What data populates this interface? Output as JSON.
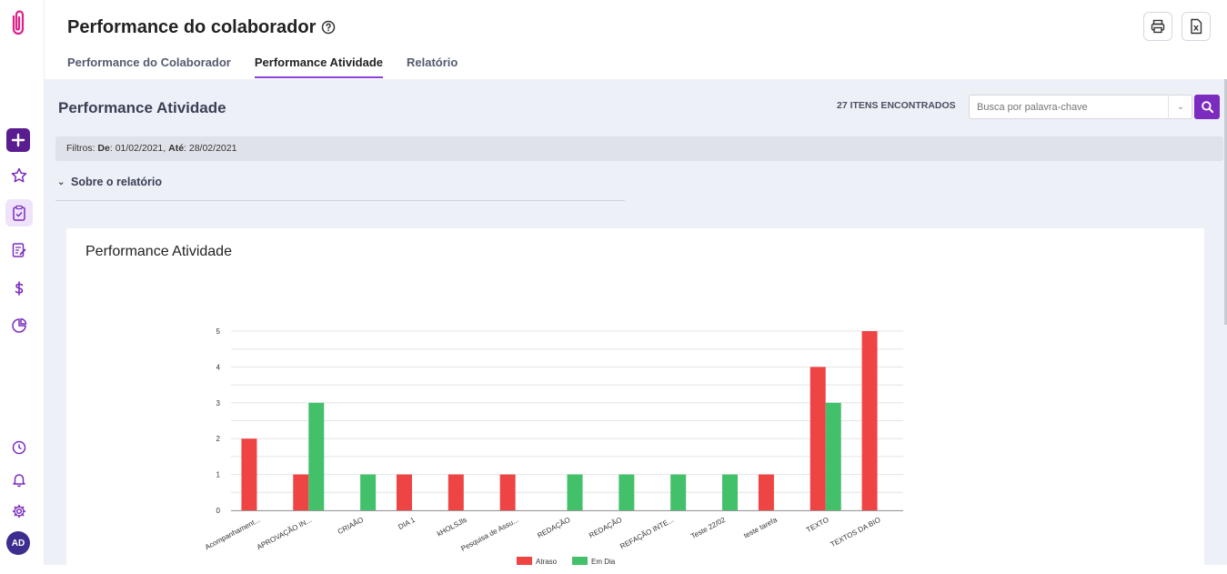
{
  "header": {
    "title": "Performance do colaborador",
    "tabs": [
      {
        "label": "Performance do Colaborador",
        "active": false
      },
      {
        "label": "Performance Atividade",
        "active": true
      },
      {
        "label": "Relatório",
        "active": false
      }
    ]
  },
  "section": {
    "title": "Performance Atividade",
    "items_found": "27 ITENS ENCONTRADOS",
    "search_placeholder": "Busca por palavra-chave"
  },
  "filters": {
    "prefix": "Filtros:",
    "from_label": "De",
    "from_value": "01/02/2021",
    "to_label": "Até",
    "to_value": "28/02/2021"
  },
  "about": {
    "label": "Sobre o relatório"
  },
  "card": {
    "title": "Performance Atividade"
  },
  "sidebar": {
    "avatar_initials": "AD"
  },
  "colors": {
    "accent": "#7b2cbf",
    "atraso": "#ef4444",
    "em_dia": "#43c06a"
  },
  "chart_data": {
    "type": "bar",
    "title": "Performance Atividade",
    "categories": [
      "Acompanhament...",
      "APROVAÇÃO IN...",
      "CRIAÃO",
      "DIA 1",
      "kHOLSJls",
      "Pesquisa de Assu...",
      "REDAÇÃO",
      "REDAÇÃO",
      "REFAÇÃO INTE...",
      "Teste 22/02",
      "teste tarefa",
      "TEXTO",
      "TEXTOS DA BIO"
    ],
    "series": [
      {
        "name": "Atraso",
        "color": "#ef4444",
        "values": [
          2,
          1,
          0,
          1,
          1,
          1,
          0,
          0,
          0,
          0,
          1,
          4,
          5
        ]
      },
      {
        "name": "Em Dia",
        "color": "#43c06a",
        "values": [
          0,
          3,
          1,
          0,
          0,
          0,
          1,
          1,
          1,
          1,
          0,
          3,
          0
        ]
      }
    ],
    "ylim": [
      0,
      5
    ],
    "yticks": [
      "0",
      "1",
      "2",
      "3",
      "4",
      "5"
    ],
    "grid": true,
    "legend": "bottom"
  }
}
